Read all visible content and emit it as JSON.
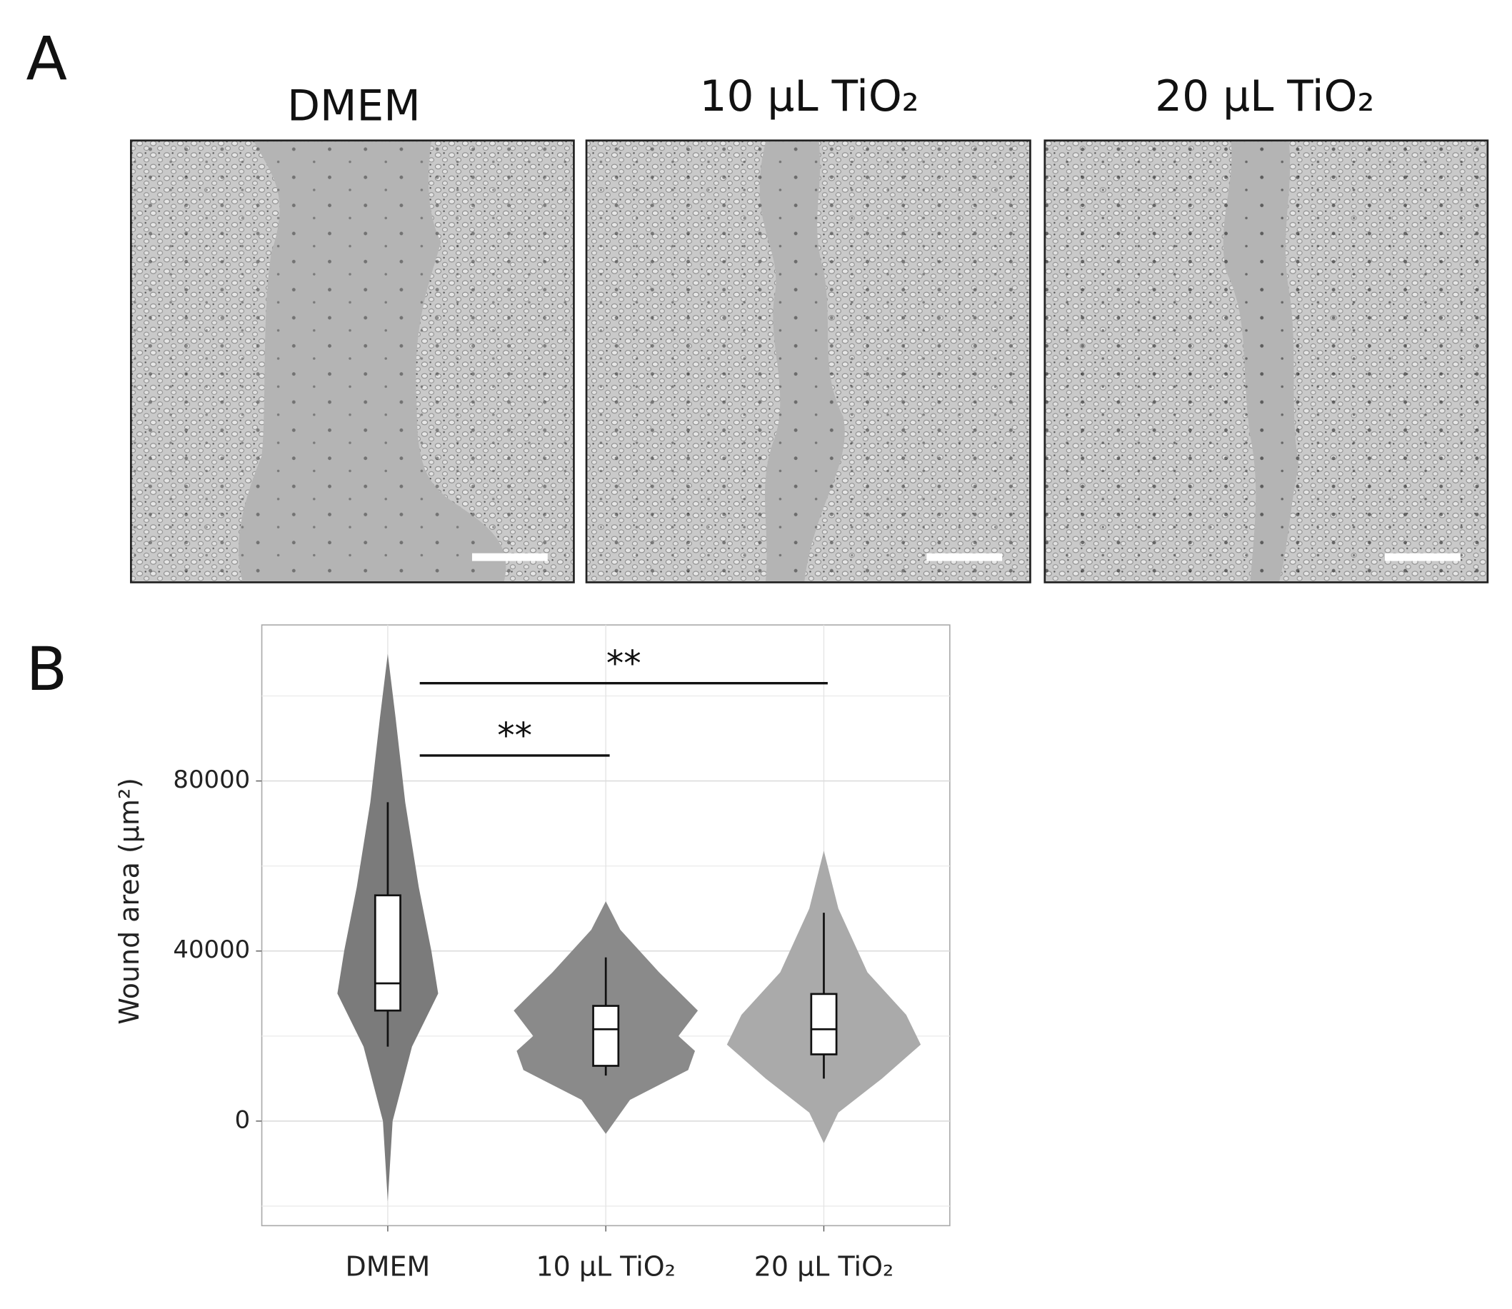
{
  "panel_a": {
    "label": "A",
    "images": [
      {
        "title": "DMEM"
      },
      {
        "title": "10 µL TiO₂"
      },
      {
        "title": "20 µL TiO₂"
      }
    ]
  },
  "panel_b": {
    "label": "B"
  },
  "chart_data": {
    "type": "violin",
    "y_label": "Wound area (µm²)",
    "categories": [
      "DMEM",
      "10 µL TiO₂",
      "20 µL TiO₂"
    ],
    "series": [
      {
        "name": "DMEM",
        "color": "#7b7b7b",
        "violin_values": [
          -18900,
          0,
          17500,
          30000,
          40000,
          55000,
          75000,
          95000,
          109900
        ],
        "density": [
          0,
          0.05,
          0.25,
          0.52,
          0.45,
          0.32,
          0.18,
          0.08,
          0
        ],
        "whisker_low": 17500,
        "q1": 26000,
        "median": 32400,
        "q3": 53100,
        "whisker_high": 75000
      },
      {
        "name": "10 µL TiO₂",
        "color": "#8a8a8a",
        "violin_values": [
          -3000,
          5000,
          12000,
          16500,
          20000,
          26000,
          35000,
          45000,
          51700
        ],
        "density": [
          0,
          0.25,
          0.85,
          0.92,
          0.75,
          0.95,
          0.55,
          0.15,
          0
        ],
        "whisker_low": 10700,
        "q1": 13000,
        "median": 21600,
        "q3": 27100,
        "whisker_high": 38500
      },
      {
        "name": "20 µL TiO₂",
        "color": "#aaaaaa",
        "violin_values": [
          -5200,
          2000,
          10000,
          18000,
          25000,
          35000,
          50000,
          63600
        ],
        "density": [
          0,
          0.15,
          0.6,
          1.0,
          0.85,
          0.45,
          0.15,
          0
        ],
        "whisker_low": 10000,
        "q1": 15700,
        "median": 21600,
        "q3": 29900,
        "whisker_high": 49000
      }
    ],
    "ylim": [
      -24600,
      116700
    ],
    "yticks": [
      0,
      40000,
      80000
    ],
    "minor_yticks": [
      -20000,
      20000,
      60000,
      100000
    ],
    "grid": true,
    "annotations": [
      {
        "text": "**",
        "from": 0,
        "to": 2,
        "y": 103000
      },
      {
        "text": "**",
        "from": 0,
        "to": 1,
        "y": 86000
      }
    ]
  }
}
